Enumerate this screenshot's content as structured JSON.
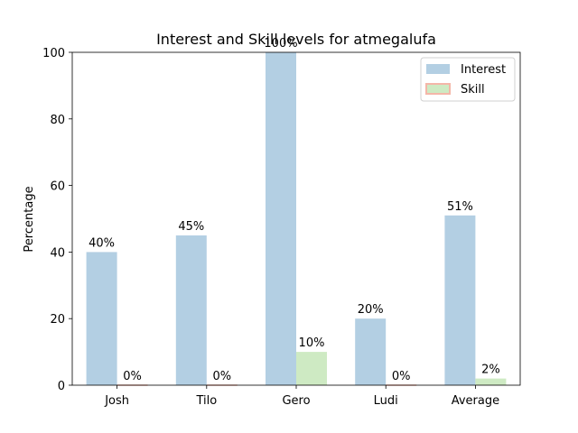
{
  "chart_data": {
    "type": "bar",
    "title": "Interest and Skill levels for atmegalufa",
    "xlabel": "",
    "ylabel": "Percentage",
    "ylim": [
      0,
      100
    ],
    "yticks": [
      0,
      20,
      40,
      60,
      80,
      100
    ],
    "categories": [
      "Josh",
      "Tilo",
      "Gero",
      "Ludi",
      "Average"
    ],
    "series": [
      {
        "name": "Interest",
        "values": [
          40,
          45,
          100,
          20,
          51
        ],
        "labels": [
          "40%",
          "45%",
          "100%",
          "20%",
          "51%"
        ],
        "color": "#b3cfe3"
      },
      {
        "name": "Skill",
        "values": [
          0,
          0,
          10,
          0,
          2
        ],
        "labels": [
          "0%",
          "0%",
          "10%",
          "0%",
          "2%"
        ],
        "color": "#ceeac3",
        "edge_color": "#f4b6a8"
      }
    ],
    "grid": false,
    "legend_position": "top-right"
  }
}
